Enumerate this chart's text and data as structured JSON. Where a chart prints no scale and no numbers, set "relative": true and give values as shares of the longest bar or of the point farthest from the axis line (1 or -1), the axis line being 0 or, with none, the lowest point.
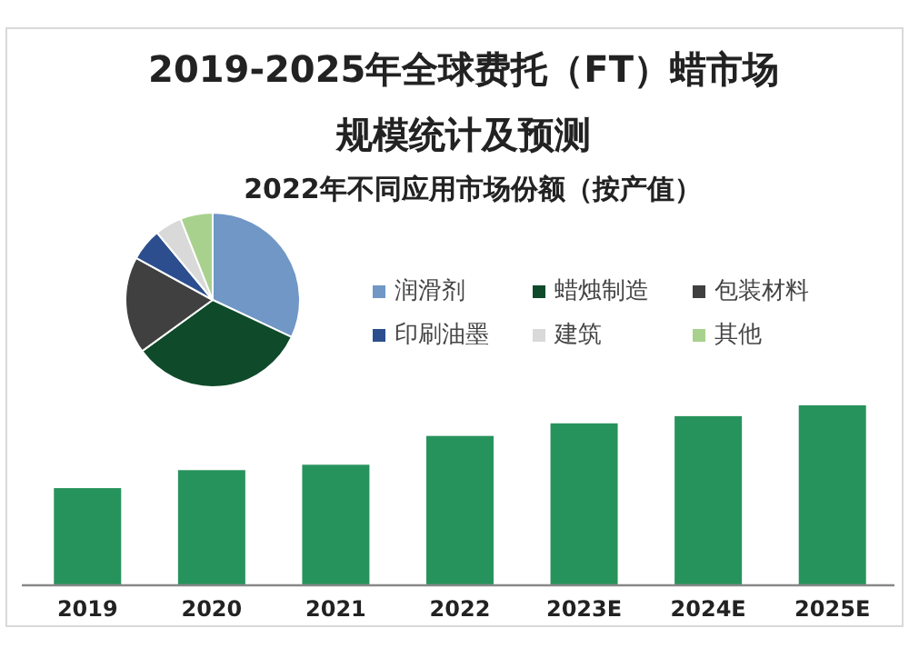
{
  "chart_data": [
    {
      "type": "bar",
      "title": "2019-2025年全球费托（FT）蜡市场规模统计及预测",
      "relative": true,
      "categories": [
        "2019",
        "2020",
        "2021",
        "2022",
        "2023E",
        "2024E",
        "2025E"
      ],
      "values": [
        0.54,
        0.64,
        0.67,
        0.83,
        0.9,
        0.94,
        1
      ],
      "color": "#27935c"
    },
    {
      "type": "pie",
      "title": "2022年不同应用市场份额（按产值）",
      "legend": "right",
      "categories": [
        "润滑剂",
        "蜡烛制造",
        "包装材料",
        "印刷油墨",
        "建筑",
        "其他"
      ],
      "values": [
        32,
        33,
        18,
        6,
        5,
        6
      ],
      "colors": [
        "#7097c6",
        "#0f4a2a",
        "#404040",
        "#2c4e8e",
        "#d9d9d9",
        "#a9d18e"
      ]
    }
  ]
}
